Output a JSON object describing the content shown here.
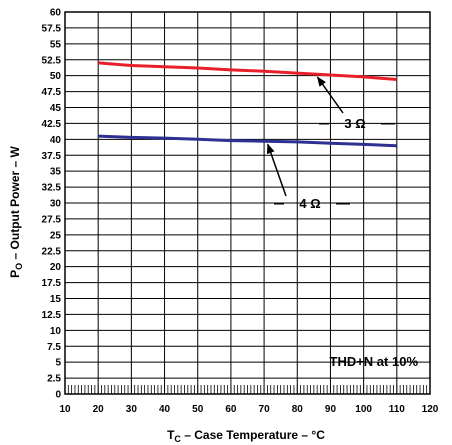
{
  "chart_data": {
    "type": "line",
    "xlabel": {
      "main": "T",
      "sub": "C",
      "rest": " – Case Temperature – °C"
    },
    "ylabel": {
      "main": "P",
      "sub": "O",
      "rest": " – Output Power – W"
    },
    "xlim": [
      10,
      120
    ],
    "ylim": [
      0,
      60
    ],
    "x_ticks": [
      10,
      20,
      30,
      40,
      50,
      60,
      70,
      80,
      90,
      100,
      110,
      120
    ],
    "y_ticks": [
      "0",
      "2.5",
      "5",
      "7.5",
      "10",
      "12.5",
      "15",
      "17.5",
      "20",
      "22.5",
      "25",
      "27.5",
      "30",
      "32.5",
      "35",
      "37.5",
      "40",
      "42.5",
      "45",
      "47.5",
      "50",
      "52.5",
      "55",
      "57.5",
      "60"
    ],
    "grid": true,
    "series": [
      {
        "name": "3 Ω",
        "color": "#e8202a",
        "x": [
          20,
          30,
          40,
          50,
          60,
          70,
          80,
          90,
          100,
          110
        ],
        "y": [
          52.0,
          51.6,
          51.4,
          51.2,
          50.9,
          50.7,
          50.4,
          50.1,
          49.8,
          49.4
        ]
      },
      {
        "name": "4 Ω",
        "color": "#2e3192",
        "x": [
          20,
          30,
          40,
          50,
          60,
          70,
          80,
          90,
          100,
          110
        ],
        "y": [
          40.5,
          40.3,
          40.2,
          40.0,
          39.8,
          39.7,
          39.6,
          39.4,
          39.2,
          39.0
        ]
      }
    ],
    "annotations": [
      {
        "id": "label-3ohm",
        "text": "3 Ω",
        "series": "3 Ω"
      },
      {
        "id": "label-4ohm",
        "text": "4 Ω",
        "series": "4 Ω"
      },
      {
        "id": "condition",
        "text": "THD+N at 10%"
      }
    ]
  }
}
